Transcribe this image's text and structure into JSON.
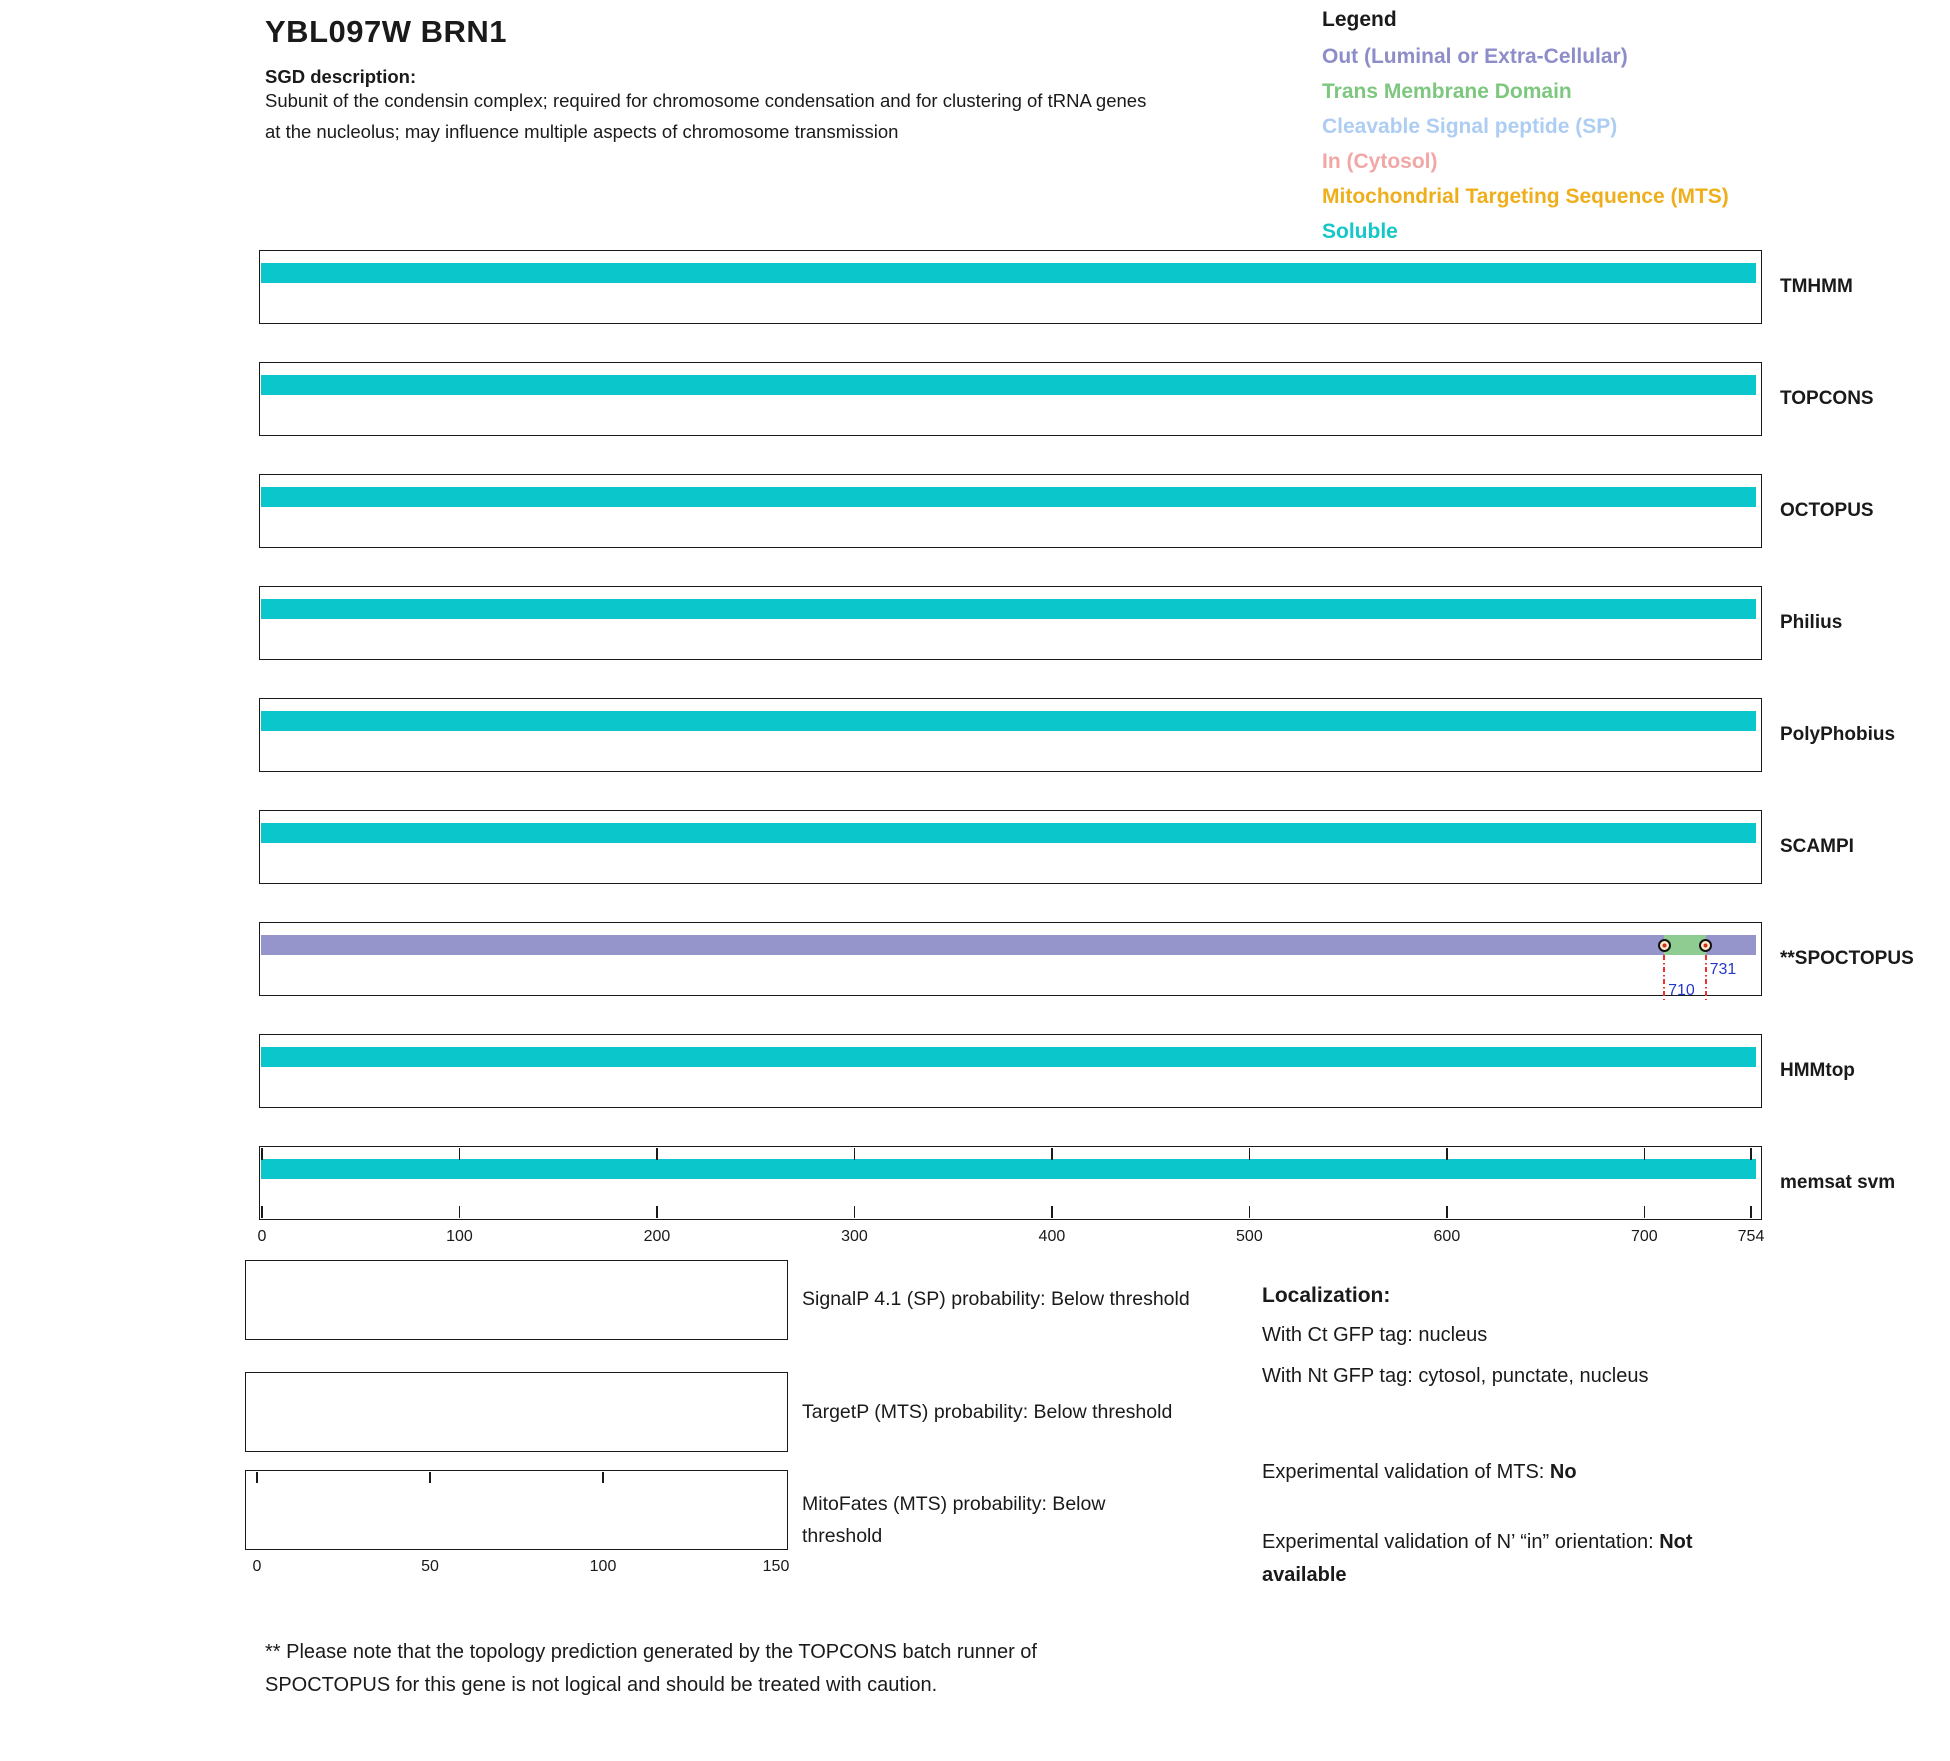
{
  "header": {
    "title": "YBL097W  BRN1",
    "sgd_label": "SGD description:",
    "description_line1": "Subunit of the condensin complex; required for chromosome condensation and for clustering of tRNA genes",
    "description_line2": "at the nucleolus; may influence multiple aspects of chromosome transmission"
  },
  "legend": {
    "title": "Legend",
    "entries": [
      {
        "label": "Out (Luminal or Extra-Cellular)",
        "color": "#8d8dc9"
      },
      {
        "label": "Trans Membrane Domain",
        "color": "#7dc77f"
      },
      {
        "label": "Cleavable Signal peptide (SP)",
        "color": "#adcdf2"
      },
      {
        "label": "In (Cytosol)",
        "color": "#f2a7a7"
      },
      {
        "label": "Mitochondrial Targeting Sequence (MTS)",
        "color": "#efaf1d"
      },
      {
        "label": "Soluble",
        "color": "#16c7c7"
      }
    ]
  },
  "chart_data": {
    "type": "topology-tracks",
    "sequence_length": 754,
    "xticks": [
      0,
      100,
      200,
      300,
      400,
      500,
      600,
      700,
      754
    ],
    "region_colors": {
      "Soluble": "#0bc7cc",
      "Out": "#9595cb",
      "TM": "#8fcc92",
      "SP": "#adcdf2",
      "In": "#f2a7a7",
      "MTS": "#efaf1d"
    },
    "tracks": [
      {
        "name": "TMHMM",
        "segments": [
          {
            "start": 0,
            "end": 754,
            "region": "Soluble"
          }
        ]
      },
      {
        "name": "TOPCONS",
        "segments": [
          {
            "start": 0,
            "end": 754,
            "region": "Soluble"
          }
        ]
      },
      {
        "name": "OCTOPUS",
        "segments": [
          {
            "start": 0,
            "end": 754,
            "region": "Soluble"
          }
        ]
      },
      {
        "name": "Philius",
        "segments": [
          {
            "start": 0,
            "end": 754,
            "region": "Soluble"
          }
        ]
      },
      {
        "name": "PolyPhobius",
        "segments": [
          {
            "start": 0,
            "end": 754,
            "region": "Soluble"
          }
        ]
      },
      {
        "name": "SCAMPI",
        "segments": [
          {
            "start": 0,
            "end": 754,
            "region": "Soluble"
          }
        ]
      },
      {
        "name": "**SPOCTOPUS",
        "segments": [
          {
            "start": 0,
            "end": 710,
            "region": "Out"
          },
          {
            "start": 710,
            "end": 731,
            "region": "TM"
          },
          {
            "start": 731,
            "end": 754,
            "region": "Out"
          }
        ],
        "markers": [
          {
            "pos": 710,
            "label": "710"
          },
          {
            "pos": 731,
            "label": "731"
          }
        ]
      },
      {
        "name": "HMMtop",
        "segments": [
          {
            "start": 0,
            "end": 754,
            "region": "Soluble"
          }
        ]
      },
      {
        "name": "memsat svm",
        "segments": [
          {
            "start": 0,
            "end": 754,
            "region": "Soluble"
          }
        ],
        "has_axis": true
      }
    ]
  },
  "bottom_plots": [
    {
      "caption": "SignalP 4.1 (SP) probability: Below threshold"
    },
    {
      "caption": "TargetP (MTS) probability: Below threshold"
    },
    {
      "caption_line1": "MitoFates (MTS) probability: Below",
      "caption_line2": "threshold",
      "axis_ticks": [
        0,
        50,
        100,
        150
      ],
      "edge_ticks": [
        0,
        50,
        100
      ]
    }
  ],
  "localization": {
    "title": "Localization:",
    "ct_line": "With Ct GFP tag: nucleus",
    "nt_line": "With Nt GFP tag: cytosol, punctate, nucleus",
    "mts_prefix": "Experimental validation of MTS: ",
    "mts_value": "No",
    "orientation_prefix": "Experimental validation of N’ “in” orientation: ",
    "orientation_value": "Not available"
  },
  "footnote": {
    "line1": "** Please note that the topology prediction generated by the TOPCONS batch runner of",
    "line2": "SPOCTOPUS for this gene is not logical and should be treated with caution."
  }
}
